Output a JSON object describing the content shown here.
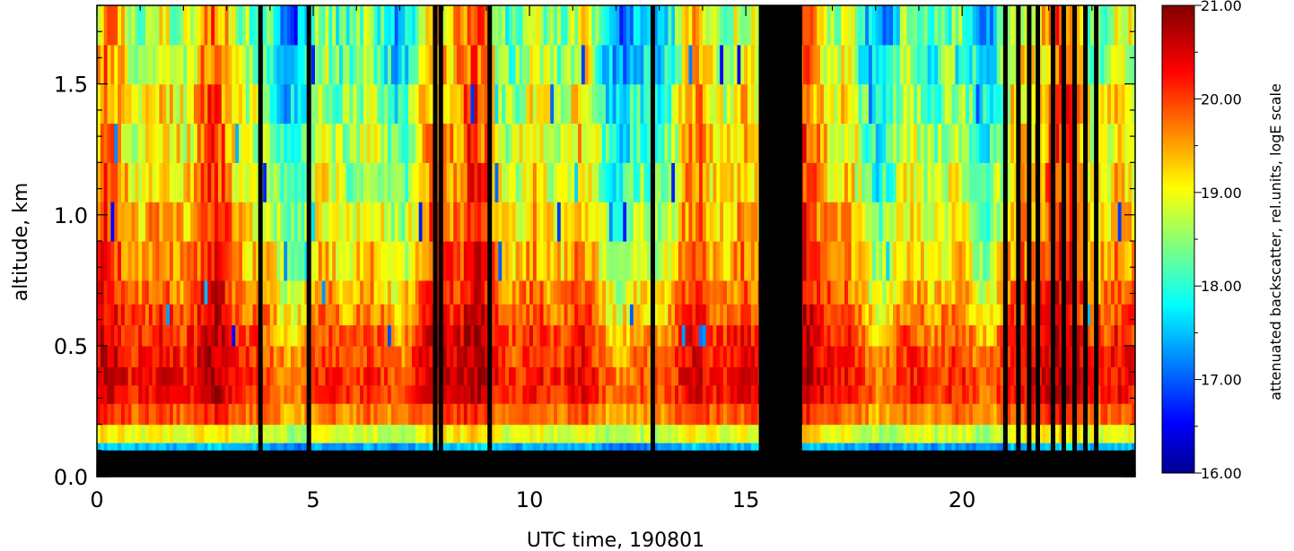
{
  "chart_data": {
    "type": "heatmap",
    "title": "",
    "xlabel": "UTC time, 190801",
    "ylabel": "altitude, km",
    "xlim": [
      0,
      24
    ],
    "ylim": [
      0,
      1.8
    ],
    "x_ticks": [
      0,
      5,
      10,
      15,
      20
    ],
    "x_tick_labels": [
      "0",
      "5",
      "10",
      "15",
      "20"
    ],
    "y_ticks": [
      0.0,
      0.5,
      1.0,
      1.5
    ],
    "y_tick_labels": [
      "0.0",
      "0.5",
      "1.0",
      "1.5"
    ],
    "colorbar": {
      "label": "attenuated backscatter, rel.units, logE scale",
      "min": 16.0,
      "max": 21.0,
      "ticks": [
        16.0,
        17.0,
        18.0,
        19.0,
        20.0,
        21.0
      ],
      "tick_labels": [
        "16.00",
        "17.00",
        "18.00",
        "19.00",
        "20.00",
        "21.00"
      ],
      "colormap": "jet"
    },
    "no_data_color": "#000000",
    "no_data": {
      "time_gaps_utc": [
        [
          15.3,
          16.3
        ]
      ],
      "altitude_below_km": 0.1,
      "dropout_times_utc": [
        3.78,
        4.9,
        7.82,
        7.95,
        9.08,
        12.85,
        21.0,
        21.3,
        21.55,
        21.75,
        22.1,
        22.35,
        22.6,
        22.85,
        23.1
      ]
    },
    "altitude_levels_km": [
      0.13,
      0.2,
      0.28,
      0.35,
      0.42,
      0.5,
      0.58,
      0.66,
      0.75,
      0.9,
      1.05,
      1.2,
      1.35,
      1.5,
      1.65,
      1.8
    ],
    "mean_profile": [
      17.4,
      18.9,
      19.8,
      20.2,
      20.2,
      20.1,
      20.0,
      19.8,
      19.6,
      19.4,
      19.2,
      19.0,
      18.9,
      18.8,
      18.6,
      18.5
    ]
  }
}
